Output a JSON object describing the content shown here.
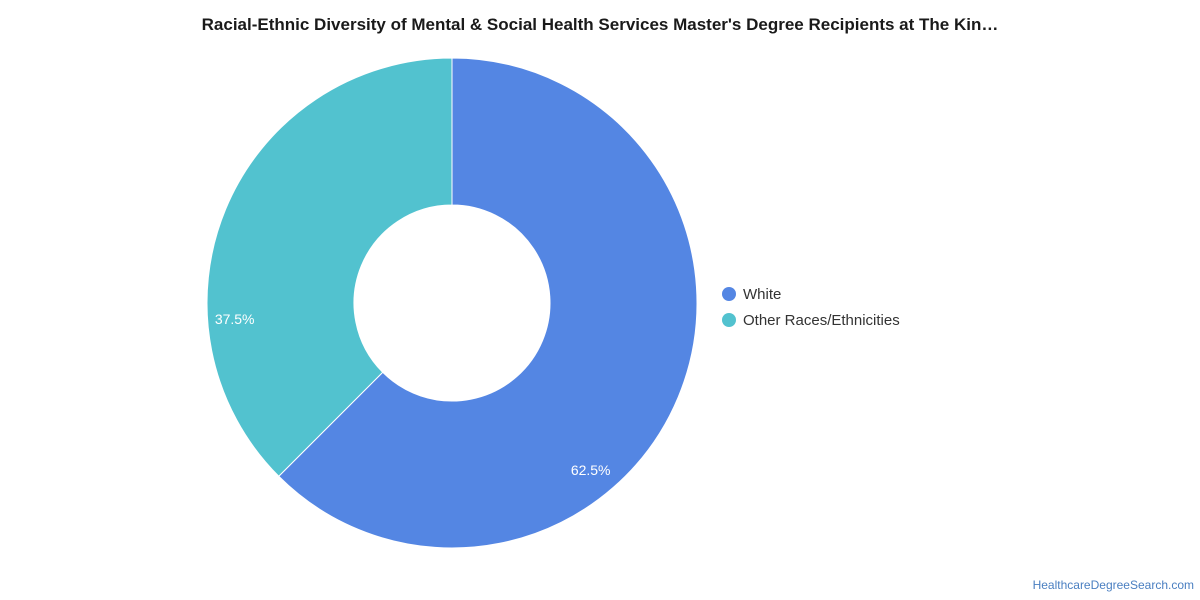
{
  "chart_data": {
    "type": "pie",
    "variant": "donut",
    "title": "Racial-Ethnic Diversity of Mental & Social Health Services Master's Degree Recipients at The Kin…",
    "categories": [
      "White",
      "Other Races/Ethnicities"
    ],
    "values": [
      62.5,
      37.5
    ],
    "value_labels": [
      "62.5%",
      "37.5%"
    ],
    "colors": [
      "#5486e3",
      "#52c2cf"
    ],
    "legend_position": "right"
  },
  "footer": {
    "source": "HealthcareDegreeSearch.com"
  }
}
